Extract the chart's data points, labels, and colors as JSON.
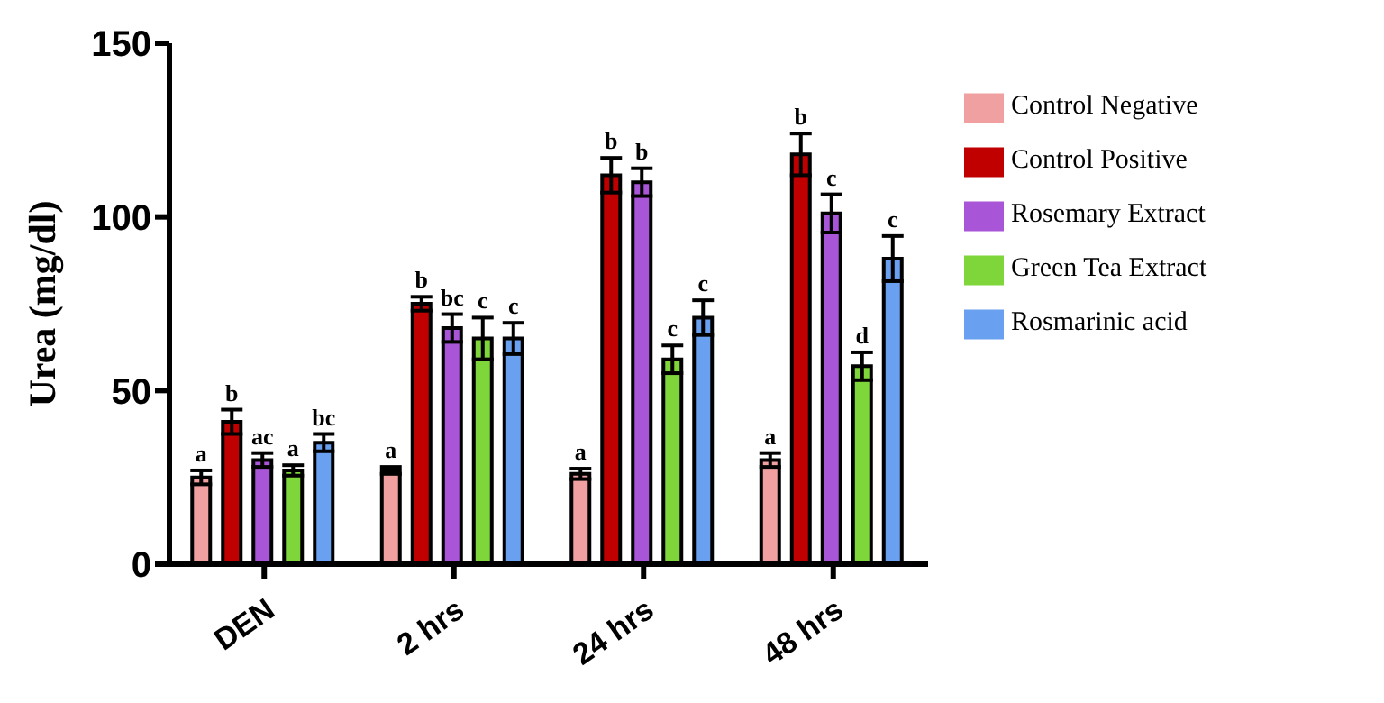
{
  "chart_data": {
    "type": "bar",
    "ylabel": "Urea (mg/dl)",
    "categories": [
      "DEN",
      "2 hrs",
      "24 hrs",
      "48 hrs"
    ],
    "ylim": [
      0,
      150
    ],
    "yticks": [
      0,
      50,
      100,
      150
    ],
    "grid": false,
    "legend": "top right",
    "series": [
      {
        "name": "Control Negative",
        "color": "#f0a0a0",
        "values": [
          25,
          27,
          26,
          30
        ],
        "errors": [
          2,
          1,
          1.5,
          2
        ],
        "value_labels": [
          "a",
          "a",
          "a",
          "a"
        ]
      },
      {
        "name": "Control Positive",
        "color": "#c00000",
        "values": [
          41,
          75,
          112,
          118
        ],
        "errors": [
          3.5,
          2,
          5,
          6
        ],
        "value_labels": [
          "b",
          "b",
          "b",
          "b"
        ]
      },
      {
        "name": "Rosemary Extract",
        "color": "#a855d8",
        "values": [
          30,
          68,
          110,
          101
        ],
        "errors": [
          2,
          4,
          4,
          5.5
        ],
        "value_labels": [
          "ac",
          "bc",
          "b",
          "c"
        ]
      },
      {
        "name": "Green Tea Extract",
        "color": "#7ed63a",
        "values": [
          27,
          65,
          59,
          57
        ],
        "errors": [
          1.5,
          6,
          4,
          4
        ],
        "value_labels": [
          "a",
          "c",
          "c",
          "d"
        ]
      },
      {
        "name": "Rosmarinic acid",
        "color": "#6aa0f0",
        "values": [
          35,
          65,
          71,
          88
        ],
        "errors": [
          2.5,
          4.5,
          5,
          6.5
        ],
        "value_labels": [
          "bc",
          "c",
          "c",
          "c"
        ]
      }
    ]
  }
}
